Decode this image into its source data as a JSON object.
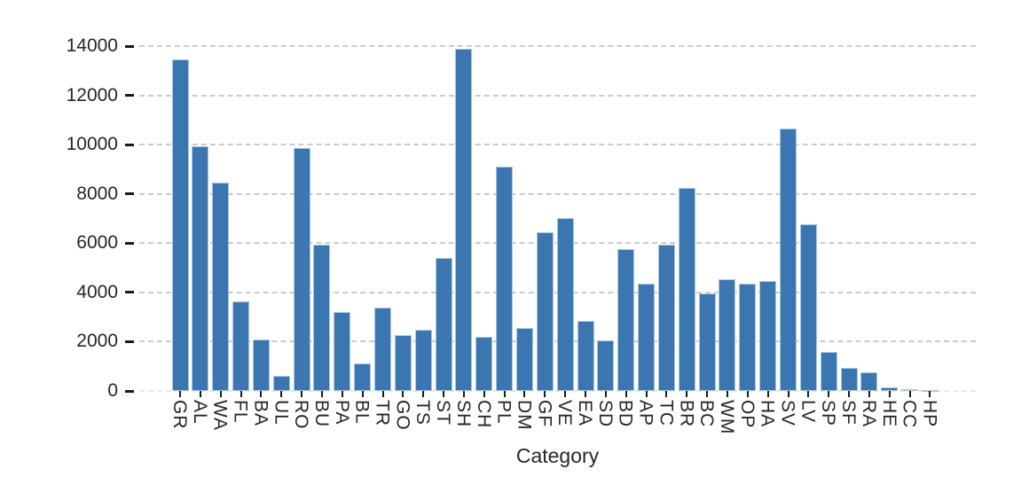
{
  "figure": {
    "background": "#ffffff"
  },
  "chart_data": {
    "type": "bar",
    "title": "",
    "xlabel": "Category",
    "ylabel": "",
    "legend": null,
    "grid": "horizontal dashed gridlines on, no axis spines",
    "bar_color": "#3C76B0",
    "bar_edge_color": "#a9c7e2",
    "grid_color": "#c6c6c6",
    "text_color": "#262626",
    "ylim": [
      0,
      14000
    ],
    "y_ticks": [
      0,
      2000,
      4000,
      6000,
      8000,
      10000,
      12000,
      14000
    ],
    "categories": [
      "GR",
      "AL",
      "WA",
      "FL",
      "BA",
      "UL",
      "RO",
      "BU",
      "PA",
      "BL",
      "TR",
      "GO",
      "TS",
      "ST",
      "SH",
      "CH",
      "PL",
      "DM",
      "GF",
      "VE",
      "EA",
      "SD",
      "BD",
      "AP",
      "TC",
      "BR",
      "BC",
      "WM",
      "OP",
      "HA",
      "SV",
      "LV",
      "SP",
      "SF",
      "RA",
      "HE",
      "CC",
      "HP"
    ],
    "values": [
      13450,
      9950,
      8450,
      3650,
      2100,
      600,
      9850,
      5950,
      3200,
      1100,
      3400,
      2250,
      2500,
      5400,
      13900,
      2200,
      9100,
      2550,
      6450,
      7000,
      2850,
      2050,
      5750,
      4350,
      5950,
      8250,
      3950,
      4550,
      4350,
      4450,
      10650,
      6750,
      1600,
      950,
      750,
      150,
      80,
      40
    ]
  }
}
